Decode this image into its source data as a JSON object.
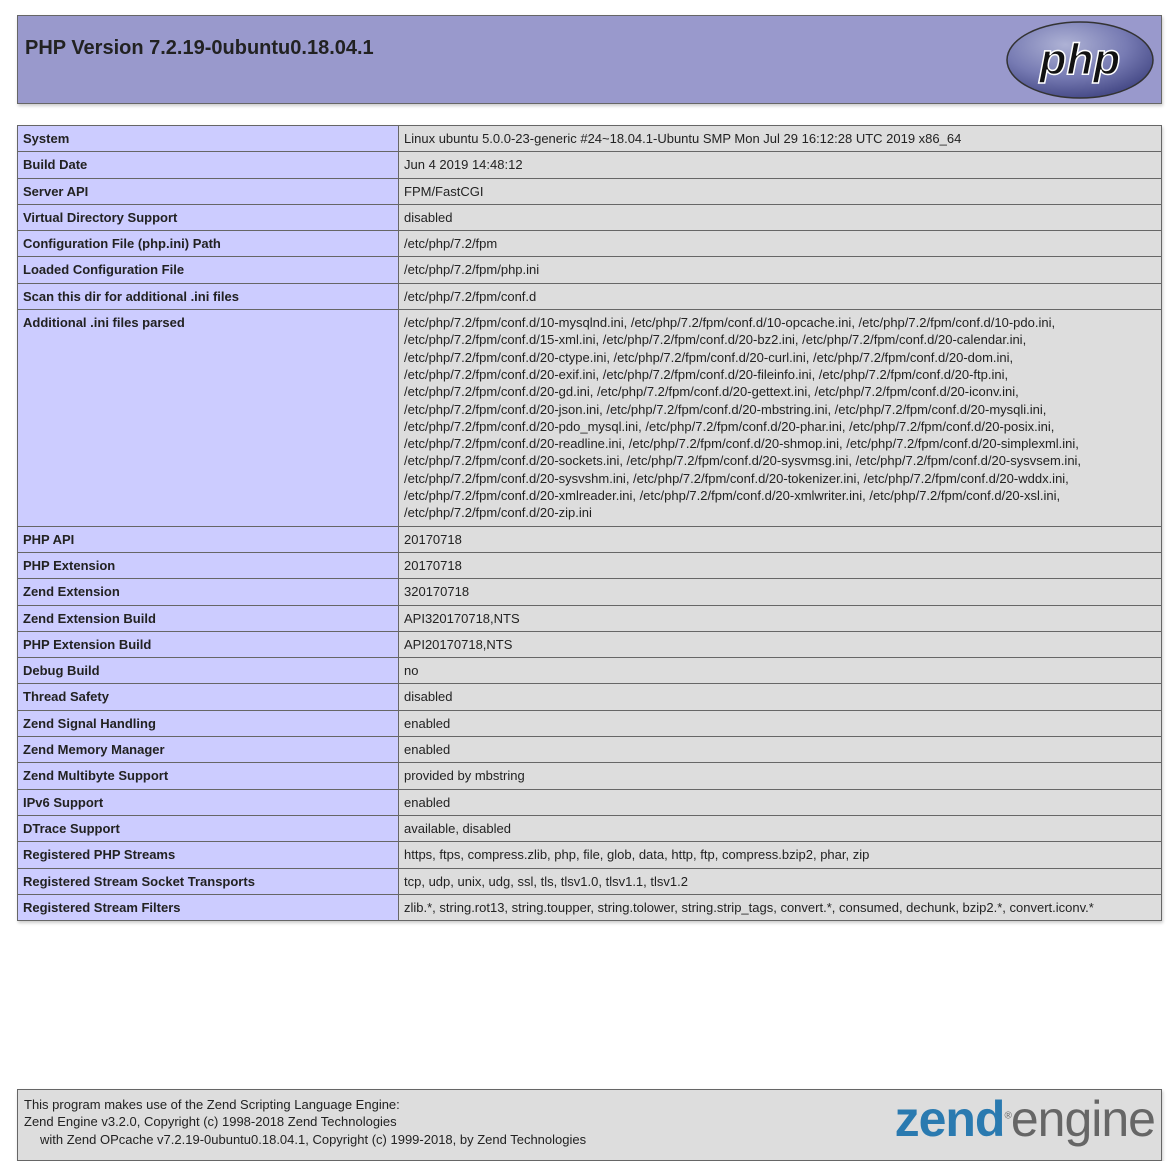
{
  "header": {
    "title": "PHP Version 7.2.19-0ubuntu0.18.04.1",
    "logo": "php"
  },
  "rows": [
    {
      "label": "System",
      "value": "Linux ubuntu 5.0.0-23-generic #24~18.04.1-Ubuntu SMP Mon Jul 29 16:12:28 UTC 2019 x86_64"
    },
    {
      "label": "Build Date",
      "value": "Jun 4 2019 14:48:12"
    },
    {
      "label": "Server API",
      "value": "FPM/FastCGI"
    },
    {
      "label": "Virtual Directory Support",
      "value": "disabled"
    },
    {
      "label": "Configuration File (php.ini) Path",
      "value": "/etc/php/7.2/fpm"
    },
    {
      "label": "Loaded Configuration File",
      "value": "/etc/php/7.2/fpm/php.ini"
    },
    {
      "label": "Scan this dir for additional .ini files",
      "value": "/etc/php/7.2/fpm/conf.d"
    },
    {
      "label": "Additional .ini files parsed",
      "value": "/etc/php/7.2/fpm/conf.d/10-mysqlnd.ini, /etc/php/7.2/fpm/conf.d/10-opcache.ini, /etc/php/7.2/fpm/conf.d/10-pdo.ini, /etc/php/7.2/fpm/conf.d/15-xml.ini, /etc/php/7.2/fpm/conf.d/20-bz2.ini, /etc/php/7.2/fpm/conf.d/20-calendar.ini, /etc/php/7.2/fpm/conf.d/20-ctype.ini, /etc/php/7.2/fpm/conf.d/20-curl.ini, /etc/php/7.2/fpm/conf.d/20-dom.ini, /etc/php/7.2/fpm/conf.d/20-exif.ini, /etc/php/7.2/fpm/conf.d/20-fileinfo.ini, /etc/php/7.2/fpm/conf.d/20-ftp.ini, /etc/php/7.2/fpm/conf.d/20-gd.ini, /etc/php/7.2/fpm/conf.d/20-gettext.ini, /etc/php/7.2/fpm/conf.d/20-iconv.ini, /etc/php/7.2/fpm/conf.d/20-json.ini, /etc/php/7.2/fpm/conf.d/20-mbstring.ini, /etc/php/7.2/fpm/conf.d/20-mysqli.ini, /etc/php/7.2/fpm/conf.d/20-pdo_mysql.ini, /etc/php/7.2/fpm/conf.d/20-phar.ini, /etc/php/7.2/fpm/conf.d/20-posix.ini, /etc/php/7.2/fpm/conf.d/20-readline.ini, /etc/php/7.2/fpm/conf.d/20-shmop.ini, /etc/php/7.2/fpm/conf.d/20-simplexml.ini, /etc/php/7.2/fpm/conf.d/20-sockets.ini, /etc/php/7.2/fpm/conf.d/20-sysvmsg.ini, /etc/php/7.2/fpm/conf.d/20-sysvsem.ini, /etc/php/7.2/fpm/conf.d/20-sysvshm.ini, /etc/php/7.2/fpm/conf.d/20-tokenizer.ini, /etc/php/7.2/fpm/conf.d/20-wddx.ini, /etc/php/7.2/fpm/conf.d/20-xmlreader.ini, /etc/php/7.2/fpm/conf.d/20-xmlwriter.ini, /etc/php/7.2/fpm/conf.d/20-xsl.ini, /etc/php/7.2/fpm/conf.d/20-zip.ini"
    },
    {
      "label": "PHP API",
      "value": "20170718"
    },
    {
      "label": "PHP Extension",
      "value": "20170718"
    },
    {
      "label": "Zend Extension",
      "value": "320170718"
    },
    {
      "label": "Zend Extension Build",
      "value": "API320170718,NTS"
    },
    {
      "label": "PHP Extension Build",
      "value": "API20170718,NTS"
    },
    {
      "label": "Debug Build",
      "value": "no"
    },
    {
      "label": "Thread Safety",
      "value": "disabled"
    },
    {
      "label": "Zend Signal Handling",
      "value": "enabled"
    },
    {
      "label": "Zend Memory Manager",
      "value": "enabled"
    },
    {
      "label": "Zend Multibyte Support",
      "value": "provided by mbstring"
    },
    {
      "label": "IPv6 Support",
      "value": "enabled"
    },
    {
      "label": "DTrace Support",
      "value": "available, disabled"
    },
    {
      "label": "Registered PHP Streams",
      "value": "https, ftps, compress.zlib, php, file, glob, data, http, ftp, compress.bzip2, phar, zip"
    },
    {
      "label": "Registered Stream Socket Transports",
      "value": "tcp, udp, unix, udg, ssl, tls, tlsv1.0, tlsv1.1, tlsv1.2"
    },
    {
      "label": "Registered Stream Filters",
      "value": "zlib.*, string.rot13, string.toupper, string.tolower, string.strip_tags, convert.*, consumed, dechunk, bzip2.*, convert.iconv.*"
    }
  ],
  "footer": {
    "line1": "This program makes use of the Zend Scripting Language Engine:",
    "line2": "Zend Engine v3.2.0, Copyright (c) 1998-2018 Zend Technologies",
    "line3": "with Zend OPcache v7.2.19-0ubuntu0.18.04.1, Copyright (c) 1999-2018, by Zend Technologies",
    "logo": "zend engine"
  }
}
